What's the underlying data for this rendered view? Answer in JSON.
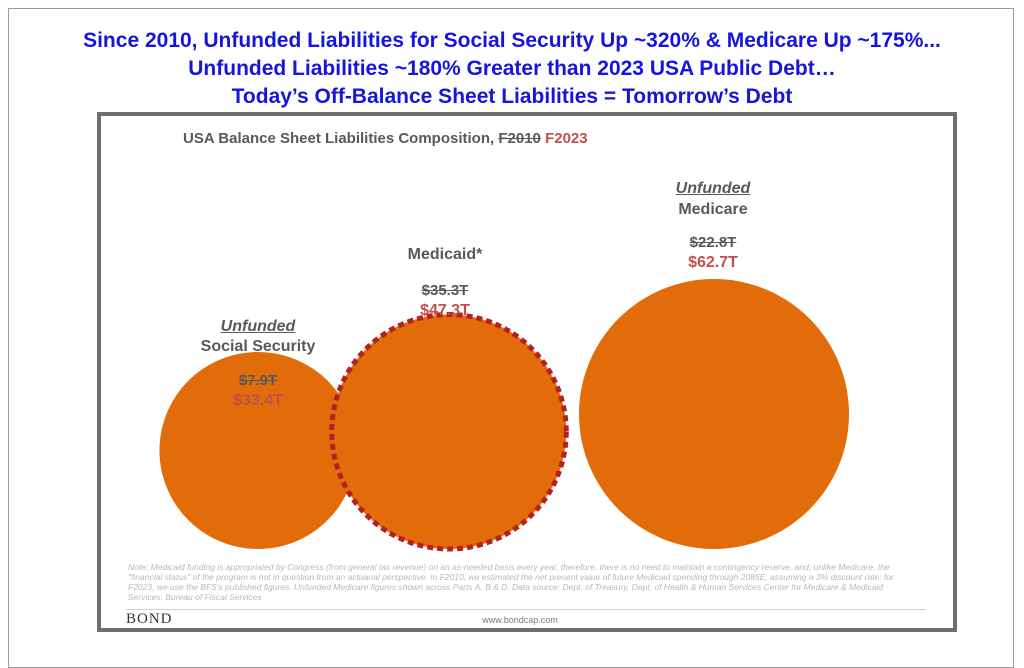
{
  "headline": {
    "line1": "Since 2010, Unfunded Liabilities for Social Security Up ~320% & Medicare Up ~175%...",
    "line2": "Unfunded Liabilities ~180% Greater than 2023 USA Public Debt…",
    "line3": "Today’s Off-Balance Sheet Liabilities = Tomorrow’s Debt"
  },
  "chart_data": {
    "type": "bubble",
    "title": "USA Balance Sheet Liabilities Composition,",
    "title_old_year": "F2010",
    "title_new_year": "F2023",
    "unit": "$T",
    "series": [
      {
        "qualifier": "Unfunded",
        "name": "Social Security",
        "f2010_label": "$7.9T",
        "f2023_label": "$33.4T",
        "f2010": 7.9,
        "f2023": 33.4,
        "style": "solid"
      },
      {
        "qualifier": "",
        "name": "Medicaid*",
        "f2010_label": "$35.3T",
        "f2023_label": "$47.3T",
        "f2010": 35.3,
        "f2023": 47.3,
        "style": "dashed-outline"
      },
      {
        "qualifier": "Unfunded",
        "name": "Medicare",
        "f2010_label": "$22.8T",
        "f2023_label": "$62.7T",
        "f2010": 22.8,
        "f2023": 62.7,
        "style": "solid"
      }
    ],
    "colors": {
      "bubble_fill": "#e36c0a",
      "dashed_outline": "#b52020",
      "accent_text": "#c0504d",
      "headline": "#1515dc"
    }
  },
  "note": "Note: Medicaid funding is appropriated by Congress (from general tax revenue) on an as-needed basis every year, therefore, there is no need to maintain a contingency reserve, and, unlike Medicare, the \"financial status\" of the program is not in question from an actuarial perspective. In F2010, we estimated the net present value of future Medicaid spending through 2085E, assuming a 3% discount rate; for F2023, we use the BFS's published figures. Unfunded Medicare figures shown across Parts A, B & D. Data source: Dept. of Treasury, Dept. of Health & Human Services Center for Medicare & Medicaid Services, Bureau of Fiscal Services",
  "footer": {
    "brand": "BOND",
    "url": "www.bondcap.com"
  }
}
